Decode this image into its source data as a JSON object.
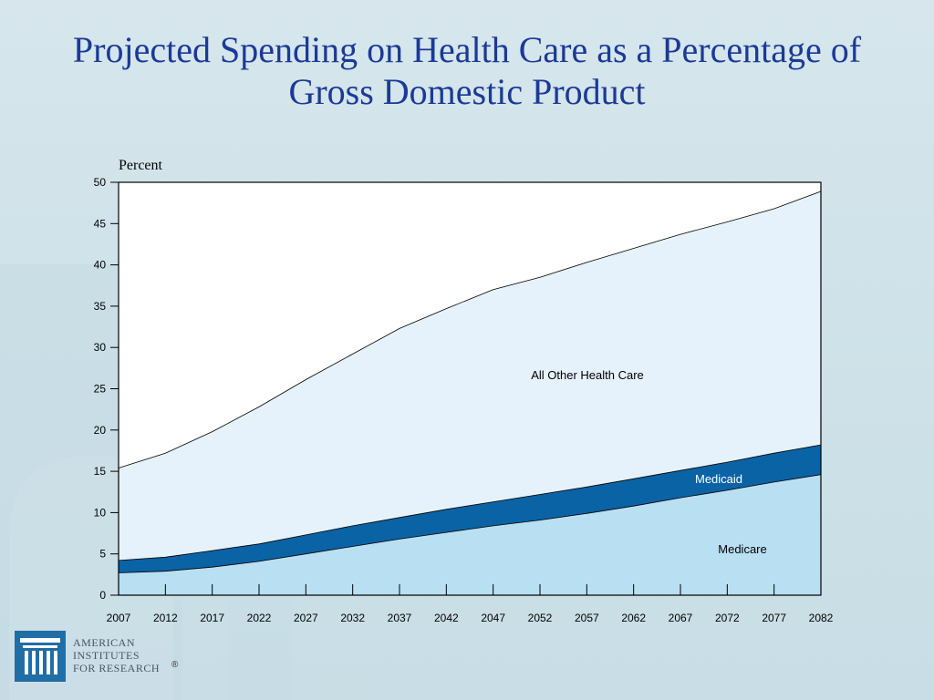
{
  "title": {
    "line1": "Projected Spending on Health Care as a Percentage of",
    "line2": "Gross Domestic Product"
  },
  "logo": {
    "line1": "AMERICAN",
    "line2": "INSTITUTES",
    "line3": "FOR RESEARCH",
    "mark": "®"
  },
  "colors": {
    "title": "#1b3a96",
    "medicare": "#b9dff3",
    "medicaid": "#0a63a5",
    "all_other": "#e6f2fb",
    "plot_bg": "#ffffff"
  },
  "chart_data": {
    "type": "area",
    "ylabel": "Percent",
    "ylim": [
      0,
      50
    ],
    "yticks": [
      0,
      5,
      10,
      15,
      20,
      25,
      30,
      35,
      40,
      45,
      50
    ],
    "x": [
      2007,
      2012,
      2017,
      2022,
      2027,
      2032,
      2037,
      2042,
      2047,
      2052,
      2057,
      2062,
      2067,
      2072,
      2077,
      2082
    ],
    "stacked": true,
    "series": [
      {
        "name": "Medicare",
        "color": "#b9dff3",
        "values": [
          2.7,
          2.9,
          3.4,
          4.1,
          5.0,
          5.9,
          6.8,
          7.6,
          8.4,
          9.1,
          9.9,
          10.8,
          11.8,
          12.7,
          13.7,
          14.6
        ]
      },
      {
        "name": "Medicaid",
        "color": "#0a63a5",
        "values": [
          1.5,
          1.7,
          2.0,
          2.1,
          2.3,
          2.5,
          2.6,
          2.8,
          2.9,
          3.1,
          3.2,
          3.3,
          3.3,
          3.4,
          3.5,
          3.6
        ]
      },
      {
        "name": "All Other Health Care",
        "color": "#e6f2fb",
        "values": [
          11.2,
          12.6,
          14.4,
          16.6,
          18.8,
          20.8,
          22.9,
          24.3,
          25.7,
          26.3,
          27.2,
          27.9,
          28.6,
          29.1,
          29.6,
          30.7
        ]
      }
    ]
  }
}
